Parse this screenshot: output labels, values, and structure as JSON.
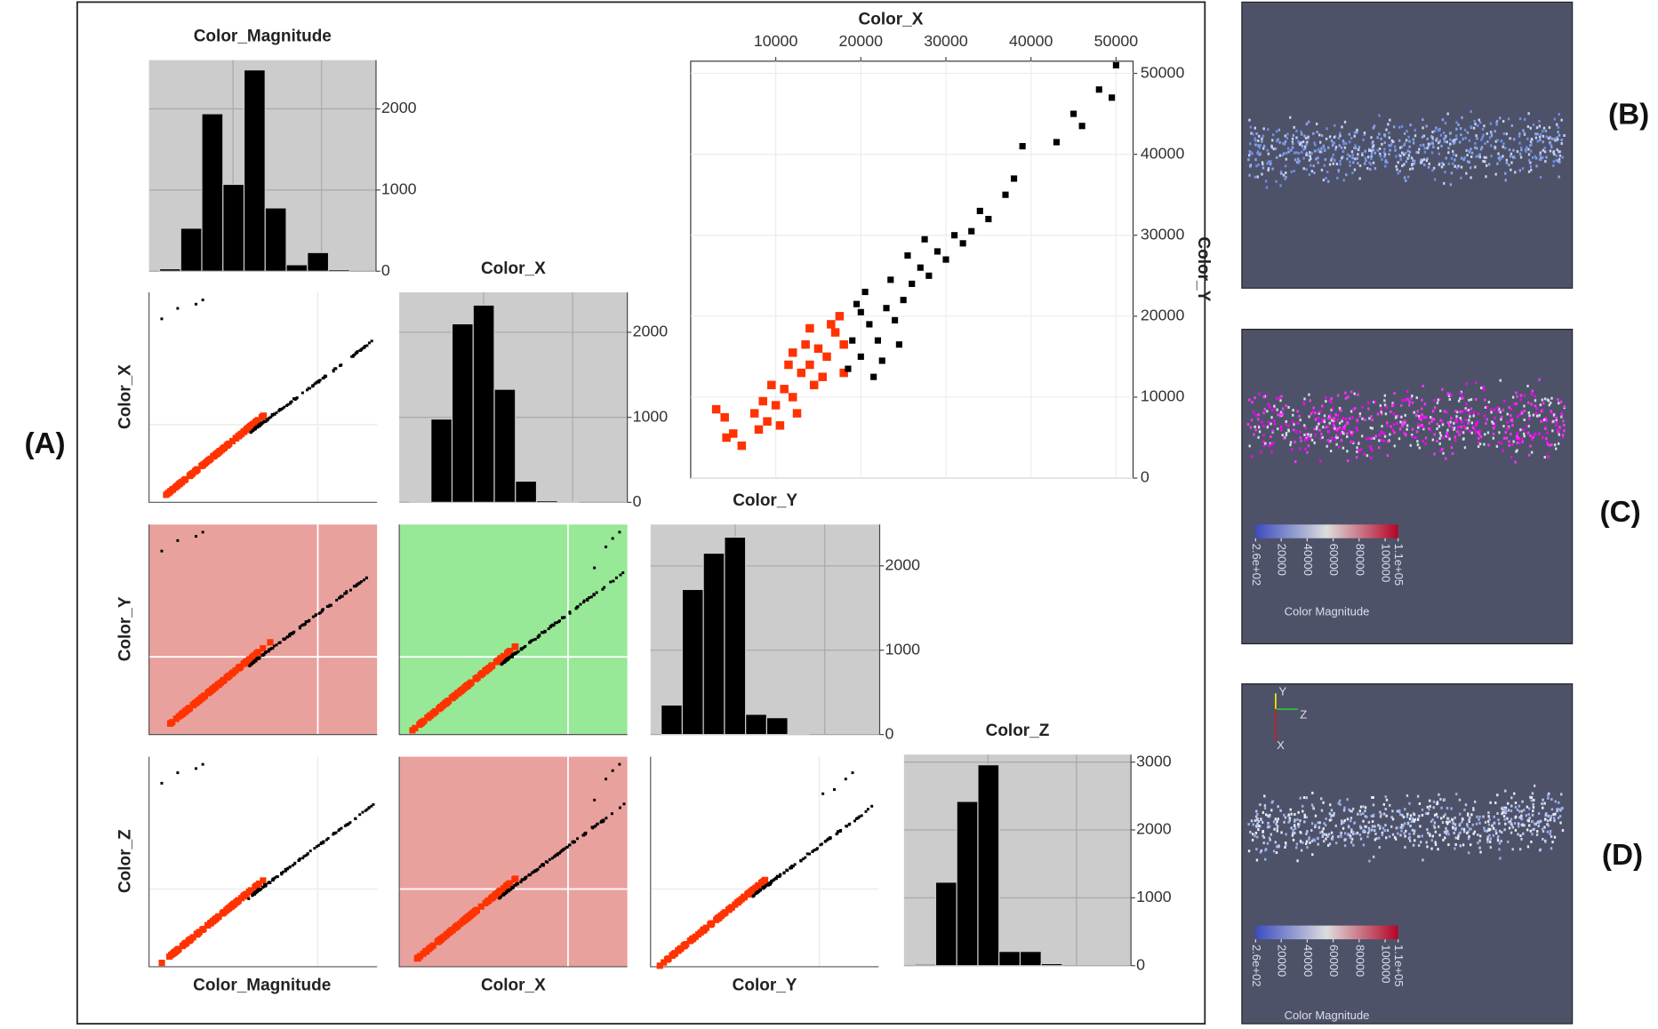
{
  "figure_labels": [
    "(A)",
    "(B)",
    "(C)",
    "(D)"
  ],
  "chart_data": [
    {
      "type": "bar",
      "title": "Color_Magnitude",
      "categories": [
        null,
        null,
        null,
        null,
        null,
        null,
        null,
        null,
        null
      ],
      "values": [
        30,
        530,
        1940,
        1070,
        2480,
        780,
        80,
        230,
        20
      ],
      "ylim": [
        0,
        2600
      ],
      "yticks": [
        0,
        1000,
        2000
      ],
      "color": "#000000",
      "grid": true
    },
    {
      "type": "bar",
      "title": "Color_X",
      "categories": [
        null,
        null,
        null,
        null,
        null,
        null,
        null,
        null
      ],
      "values": [
        10,
        980,
        2100,
        2320,
        1330,
        250,
        20,
        5
      ],
      "ylim": [
        0,
        2470
      ],
      "yticks": [
        0,
        1000,
        2000
      ],
      "color": "#000000",
      "grid": true
    },
    {
      "type": "bar",
      "title": "Color_Y",
      "categories": [
        null,
        null,
        null,
        null,
        null,
        null,
        null
      ],
      "values": [
        350,
        1720,
        2150,
        2340,
        240,
        200,
        10
      ],
      "ylim": [
        0,
        2490
      ],
      "yticks": [
        0,
        1000,
        2000
      ],
      "color": "#000000",
      "grid": true
    },
    {
      "type": "bar",
      "title": "Color_Z",
      "categories": [
        null,
        null,
        null,
        null,
        null,
        null,
        null
      ],
      "values": [
        20,
        1230,
        2420,
        2960,
        210,
        210,
        30
      ],
      "ylim": [
        0,
        3110
      ],
      "yticks": [
        0,
        1000,
        2000,
        3000
      ],
      "color": "#000000",
      "grid": true
    },
    {
      "type": "scatter",
      "x_label": "Color_X",
      "y_label": "Color_Y",
      "xlim": [
        0,
        52000
      ],
      "ylim": [
        0,
        51500
      ],
      "xticks": [
        10000,
        20000,
        30000,
        40000,
        50000
      ],
      "yticks": [
        0,
        10000,
        20000,
        30000,
        40000,
        50000
      ],
      "grid": true,
      "series": [
        {
          "color": "#ff3300",
          "x": [
            3000,
            4000,
            5000,
            4200,
            6000,
            8000,
            9000,
            10000,
            11000,
            12000,
            13000,
            14000,
            15000,
            16000,
            17000,
            17500,
            18000,
            16500,
            9500,
            11500,
            13500,
            10500,
            14500,
            12500,
            8500,
            15500,
            7500,
            18000,
            14000,
            12000
          ],
          "values": [
            8500,
            7500,
            5500,
            5000,
            4000,
            6000,
            7000,
            9000,
            11000,
            10000,
            13000,
            14000,
            16000,
            15000,
            18000,
            20000,
            16500,
            19000,
            11500,
            14000,
            16500,
            6500,
            11500,
            8000,
            9500,
            12500,
            8000,
            13000,
            18500,
            15500
          ]
        },
        {
          "color": "#000000",
          "x": [
            18500,
            19000,
            20000,
            21000,
            22000,
            23000,
            24000,
            19500,
            20500,
            22500,
            25000,
            26000,
            27000,
            28000,
            29000,
            30000,
            31000,
            25500,
            23500,
            32000,
            33000,
            27500,
            34000,
            35000,
            37000,
            38000,
            39000,
            43000,
            45000,
            46000,
            48000,
            49500,
            50000,
            20000,
            21500,
            24500
          ],
          "values": [
            13500,
            17000,
            15000,
            19000,
            17000,
            21000,
            19500,
            21500,
            23000,
            14500,
            22000,
            24000,
            26000,
            25000,
            28000,
            27000,
            30000,
            27500,
            24500,
            29000,
            30500,
            29500,
            33000,
            32000,
            35000,
            37000,
            41000,
            41500,
            45000,
            43500,
            48000,
            47000,
            51000,
            20500,
            12500,
            16500
          ]
        }
      ]
    }
  ],
  "scatter_matrix": {
    "row_labels": [
      "Color_X",
      "Color_Y",
      "Color_Z"
    ],
    "column_labels": [
      "Color_Magnitude",
      "Color_X",
      "Color_Y"
    ]
  },
  "colorbars": [
    {
      "title": "Color Magnitude",
      "lim": [
        260,
        110000
      ],
      "ticks": [
        {
          "value": 260,
          "label": "2.6e+02"
        },
        20000,
        40000,
        60000,
        80000,
        100000,
        {
          "value": 110000,
          "label": "1.1e+05"
        }
      ],
      "colors": [
        "#3b4cc0",
        "#dddddd",
        "#b40426"
      ]
    },
    {
      "title": "Color Magnitude",
      "lim": [
        260,
        110000
      ],
      "ticks": [
        {
          "value": 260,
          "label": "2.6e+02"
        },
        20000,
        40000,
        60000,
        80000,
        100000,
        {
          "value": 110000,
          "label": "1.1e+05"
        }
      ],
      "colors": [
        "#3b4cc0",
        "#dddddd",
        "#b40426"
      ]
    }
  ],
  "axes_triad": [
    "Y",
    "Z",
    "X"
  ]
}
